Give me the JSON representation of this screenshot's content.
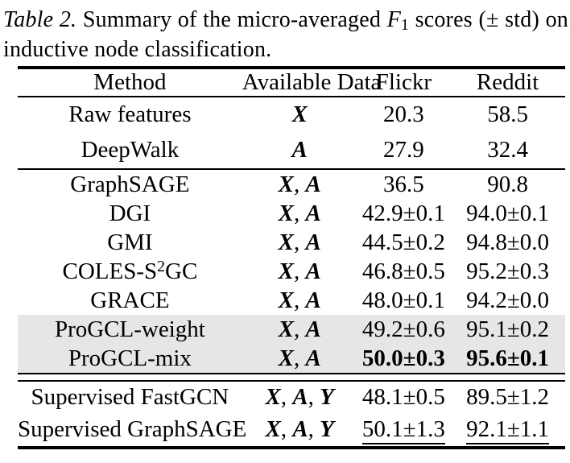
{
  "caption": {
    "label": "Table 2.",
    "text_before_f1": " Summary of the micro-averaged ",
    "f1_letter": "F",
    "f1_sub": "1",
    "text_after_f1": " scores (± std) on inductive node classification."
  },
  "table": {
    "headers": [
      "Method",
      "Available Data",
      "Flickr",
      "Reddit"
    ],
    "highlight_color": "#e6e6e6",
    "rows": [
      {
        "method": "Raw features",
        "data": [
          "X"
        ],
        "flickr": "20.3",
        "reddit": "58.5",
        "group": 1
      },
      {
        "method": "DeepWalk",
        "data": [
          "A"
        ],
        "flickr": "27.9",
        "reddit": "32.4",
        "group": 1
      },
      {
        "method": "GraphSAGE",
        "data": [
          "X",
          "A"
        ],
        "flickr": "36.5",
        "reddit": "90.8",
        "group": 2
      },
      {
        "method": "DGI",
        "data": [
          "X",
          "A"
        ],
        "flickr": "42.9±0.1",
        "reddit": "94.0±0.1",
        "group": 2
      },
      {
        "method": "GMI",
        "data": [
          "X",
          "A"
        ],
        "flickr": "44.5±0.2",
        "reddit": "94.8±0.0",
        "group": 2
      },
      {
        "method": "COLES-S|2|GC",
        "data": [
          "X",
          "A"
        ],
        "flickr": "46.8±0.5",
        "reddit": "95.2±0.3",
        "group": 2
      },
      {
        "method": "GRACE",
        "data": [
          "X",
          "A"
        ],
        "flickr": "48.0±0.1",
        "reddit": "94.2±0.0",
        "group": 2
      },
      {
        "method": "ProGCL-weight",
        "data": [
          "X",
          "A"
        ],
        "flickr": "49.2±0.6",
        "reddit": "95.1±0.2",
        "group": 2,
        "highlight": true,
        "bold_method": true
      },
      {
        "method": "ProGCL-mix",
        "data": [
          "X",
          "A"
        ],
        "flickr": "50.0±0.3",
        "reddit": "95.6±0.1",
        "group": 2,
        "highlight": true,
        "bold_method": true,
        "bold_values": true
      },
      {
        "method": "Supervised FastGCN",
        "data": [
          "X",
          "A",
          "Y"
        ],
        "flickr": "48.1±0.5",
        "reddit": "89.5±1.2",
        "group": 3
      },
      {
        "method": "Supervised GraphSAGE",
        "data": [
          "X",
          "A",
          "Y"
        ],
        "flickr": "50.1±1.3",
        "reddit": "92.1±1.1",
        "group": 3,
        "underline_values": true
      }
    ]
  }
}
